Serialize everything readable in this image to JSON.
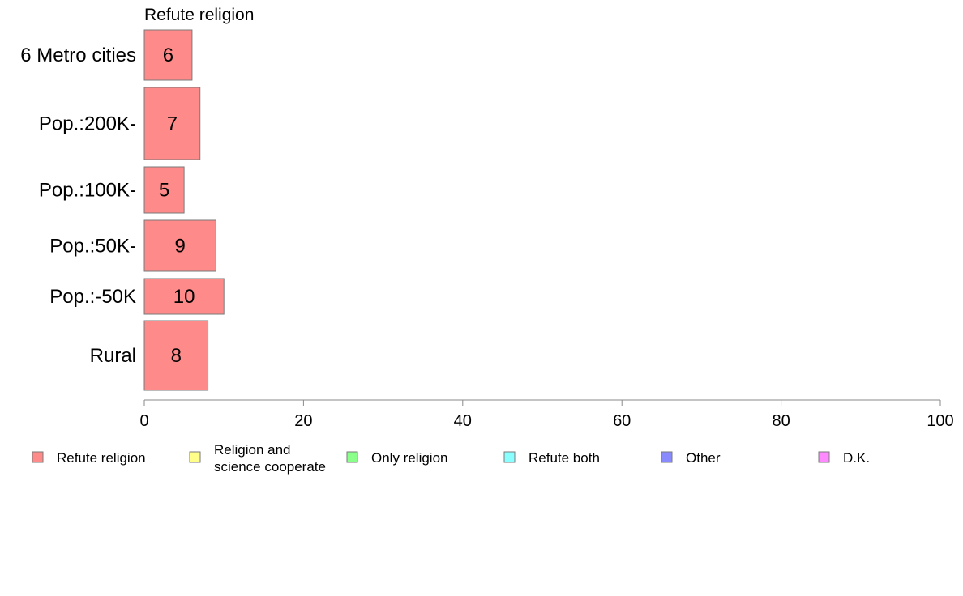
{
  "chart_data": {
    "type": "bar",
    "orientation": "horizontal",
    "title": "Refute religion",
    "categories": [
      "6 Metro cities",
      "Pop.:200K-",
      "Pop.:100K-",
      "Pop.:50K-",
      "Pop.:-50K",
      "Rural"
    ],
    "series": [
      {
        "name": "Refute religion",
        "values": [
          6,
          7,
          5,
          9,
          10,
          8
        ],
        "color": "#ff8a8a"
      }
    ],
    "data_labels": [
      "6",
      "7",
      "5",
      "9",
      "10",
      "8"
    ],
    "xlim": [
      0,
      100
    ],
    "xticks": [
      0,
      20,
      40,
      60,
      80,
      100
    ],
    "xtick_labels": [
      "0",
      "20",
      "40",
      "60",
      "80",
      "100"
    ],
    "grid": false,
    "legend_position": "bottom",
    "legend": [
      {
        "label": "Refute religion",
        "color": "#ff8a8a"
      },
      {
        "label": "Religion and science cooperate",
        "lines": [
          "Religion and",
          "science cooperate"
        ],
        "color": "#ffff8a"
      },
      {
        "label": "Only religion",
        "color": "#8aff8a"
      },
      {
        "label": "Refute both",
        "color": "#8affff"
      },
      {
        "label": "Other",
        "color": "#8a8aff"
      },
      {
        "label": "D.K.",
        "color": "#ff8aff"
      }
    ]
  }
}
